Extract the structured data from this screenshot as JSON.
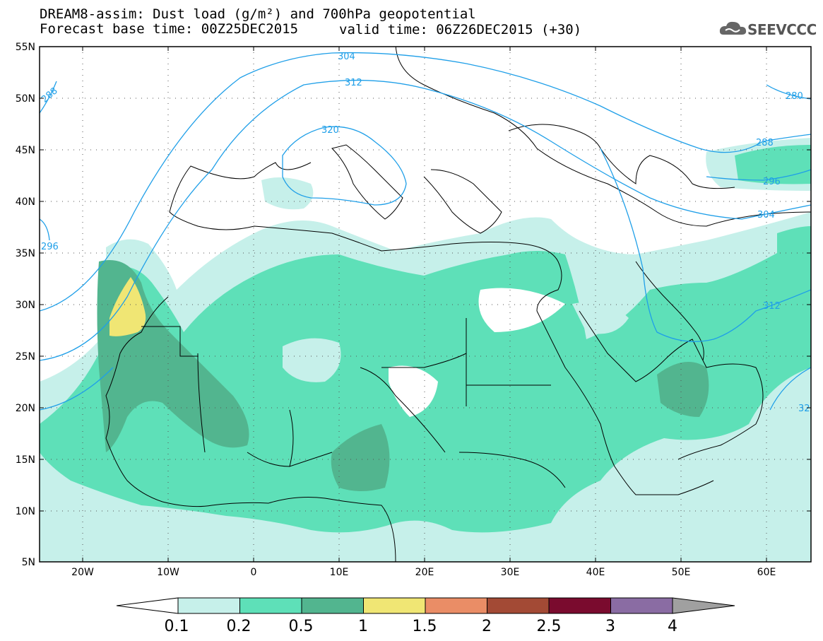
{
  "header": {
    "title_line1": "DREAM8-assim: Dust load (g/m²) and 700hPa geopotential",
    "title_line2": "Forecast base time: 00Z25DEC2015",
    "valid_time": "valid time: 06Z26DEC2015 (+30)",
    "logo_text": "SEEVCCC"
  },
  "axes": {
    "lat_labels": [
      "55N",
      "50N",
      "45N",
      "40N",
      "35N",
      "30N",
      "25N",
      "20N",
      "15N",
      "10N",
      "5N"
    ],
    "lon_labels": [
      "20W",
      "10W",
      "0",
      "10E",
      "20E",
      "30E",
      "40E",
      "50E",
      "60E"
    ]
  },
  "contours": {
    "labels": [
      "288",
      "304",
      "312",
      "320",
      "280",
      "288",
      "296",
      "304",
      "312",
      "296",
      "32"
    ],
    "color": "#1f9fe8"
  },
  "colorbar": {
    "labels": [
      "0.1",
      "0.2",
      "0.5",
      "1",
      "1.5",
      "2",
      "2.5",
      "3",
      "4"
    ],
    "colors": [
      "#c6f0ea",
      "#5ee0b8",
      "#52b58f",
      "#f0e674",
      "#ea8d66",
      "#a34a35",
      "#7a0b2e",
      "#8a6ca3",
      "#a0a0a0"
    ]
  }
}
